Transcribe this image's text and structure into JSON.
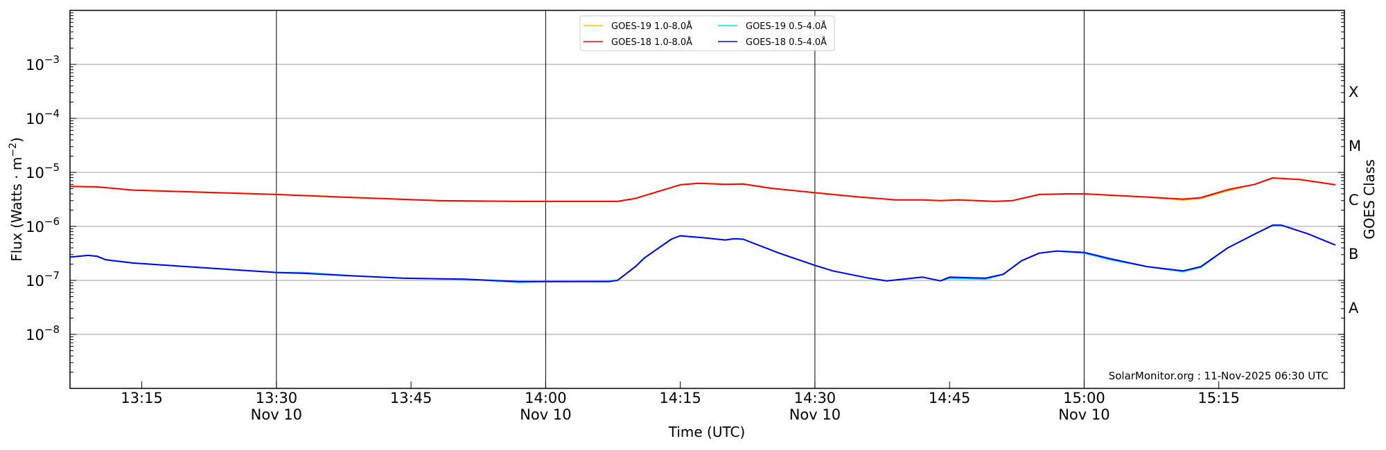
{
  "chart_data": {
    "type": "line",
    "title": "",
    "xlabel": "Time (UTC)",
    "ylabel": "Flux (Watts · m",
    "ylabel_sup": "−2",
    "ylabel_close": ")",
    "right_axis_label": "GOES Class",
    "yscale": "log",
    "ylim": [
      1e-09,
      0.01
    ],
    "xlim": [
      "13:07",
      "15:29"
    ],
    "date": "Nov 10",
    "grid": "horizontal at decades; vertical at half-hours",
    "legend_position": "top-center",
    "watermark": "SolarMonitor.org : 11-Nov-2025 06:30 UTC",
    "y_ticks": [
      {
        "value": 1e-08,
        "base": "10",
        "exp": "−8"
      },
      {
        "value": 1e-07,
        "base": "10",
        "exp": "−7"
      },
      {
        "value": 1e-06,
        "base": "10",
        "exp": "−6"
      },
      {
        "value": 1e-05,
        "base": "10",
        "exp": "−5"
      },
      {
        "value": 0.0001,
        "base": "10",
        "exp": "−4"
      },
      {
        "value": 0.001,
        "base": "10",
        "exp": "−3"
      }
    ],
    "x_ticks": [
      {
        "time": "13:15",
        "date": ""
      },
      {
        "time": "13:30",
        "date": "Nov 10"
      },
      {
        "time": "13:45",
        "date": ""
      },
      {
        "time": "14:00",
        "date": "Nov 10"
      },
      {
        "time": "14:15",
        "date": ""
      },
      {
        "time": "14:30",
        "date": "Nov 10"
      },
      {
        "time": "14:45",
        "date": ""
      },
      {
        "time": "15:00",
        "date": "Nov 10"
      },
      {
        "time": "15:15",
        "date": ""
      }
    ],
    "goes_classes": [
      {
        "label": "A",
        "value": 3.16e-08
      },
      {
        "label": "B",
        "value": 3.16e-07
      },
      {
        "label": "C",
        "value": 3.16e-06
      },
      {
        "label": "M",
        "value": 3.16e-05
      },
      {
        "label": "X",
        "value": 0.000316
      }
    ],
    "colors": {
      "goes19_long": "#ffc000",
      "goes19_short": "#00e5ee",
      "goes18_long": "#ff0000",
      "goes18_short": "#0000ff"
    },
    "series": [
      {
        "name": "GOES-19 1.0-8.0Å",
        "color": "#ffc000",
        "x": [
          "13:07",
          "13:10",
          "13:14",
          "13:30",
          "13:39",
          "13:48",
          "13:57",
          "14:08",
          "14:10",
          "14:15",
          "14:17",
          "14:20",
          "14:22",
          "14:25",
          "14:30",
          "14:35",
          "14:39",
          "14:42",
          "14:44",
          "14:46",
          "14:50",
          "14:52",
          "14:55",
          "14:58",
          "15:00",
          "15:07",
          "15:11",
          "15:13",
          "15:16",
          "15:19",
          "15:21",
          "15:24",
          "15:28"
        ],
        "y": [
          5.5e-06,
          5.4e-06,
          4.7e-06,
          3.9e-06,
          3.4e-06,
          3e-06,
          2.9e-06,
          2.9e-06,
          3.3e-06,
          5.9e-06,
          6.3e-06,
          6e-06,
          6.1e-06,
          5.1e-06,
          4.2e-06,
          3.5e-06,
          3.1e-06,
          3.1e-06,
          3e-06,
          3.1e-06,
          2.9e-06,
          3e-06,
          3.9e-06,
          4e-06,
          4e-06,
          3.5e-06,
          3.1e-06,
          3.3e-06,
          4.6e-06,
          6e-06,
          7.9e-06,
          7.4e-06,
          5.9e-06
        ]
      },
      {
        "name": "GOES-18 1.0-8.0Å",
        "color": "#ff0000",
        "x": [
          "13:07",
          "13:10",
          "13:14",
          "13:30",
          "13:39",
          "13:48",
          "13:57",
          "14:08",
          "14:10",
          "14:15",
          "14:17",
          "14:20",
          "14:22",
          "14:25",
          "14:30",
          "14:35",
          "14:39",
          "14:42",
          "14:44",
          "14:46",
          "14:50",
          "14:52",
          "14:55",
          "14:58",
          "15:00",
          "15:07",
          "15:11",
          "15:13",
          "15:16",
          "15:19",
          "15:21",
          "15:24",
          "15:28"
        ],
        "y": [
          5.5e-06,
          5.4e-06,
          4.7e-06,
          3.9e-06,
          3.4e-06,
          3e-06,
          2.9e-06,
          2.9e-06,
          3.3e-06,
          5.9e-06,
          6.3e-06,
          6e-06,
          6.1e-06,
          5.1e-06,
          4.2e-06,
          3.5e-06,
          3.1e-06,
          3.1e-06,
          3e-06,
          3.1e-06,
          2.9e-06,
          3e-06,
          3.9e-06,
          4e-06,
          4e-06,
          3.5e-06,
          3.2e-06,
          3.4e-06,
          4.8e-06,
          6e-06,
          7.9e-06,
          7.4e-06,
          5.9e-06
        ]
      },
      {
        "name": "GOES-19 0.5-4.0Å",
        "color": "#00e5ee",
        "x": [
          "13:07",
          "13:09",
          "13:10",
          "13:11",
          "13:14",
          "13:20",
          "13:26",
          "13:30",
          "13:33",
          "13:39",
          "13:44",
          "13:51",
          "13:57",
          "14:00",
          "14:07",
          "14:08",
          "14:10",
          "14:11",
          "14:14",
          "14:15",
          "14:17",
          "14:20",
          "14:21",
          "14:22",
          "14:26",
          "14:30",
          "14:32",
          "14:36",
          "14:38",
          "14:42",
          "14:44",
          "14:45",
          "14:49",
          "14:51",
          "14:53",
          "14:55",
          "14:57",
          "15:00",
          "15:03",
          "15:07",
          "15:11",
          "15:13",
          "15:16",
          "15:19",
          "15:21",
          "15:22",
          "15:25",
          "15:28"
        ],
        "y": [
          2.7e-07,
          2.9e-07,
          2.8e-07,
          2.4e-07,
          2.1e-07,
          1.8e-07,
          1.55e-07,
          1.4e-07,
          1.4e-07,
          1.2e-07,
          1.1e-07,
          1.05e-07,
          9.2e-08,
          9.5e-08,
          9.8e-08,
          1e-07,
          1.8e-07,
          2.6e-07,
          5.8e-07,
          6.7e-07,
          6.3e-07,
          5.6e-07,
          5.9e-07,
          5.8e-07,
          3.2e-07,
          1.9e-07,
          1.5e-07,
          1.1e-07,
          9.8e-08,
          1.15e-07,
          9.8e-08,
          1.1e-07,
          1.05e-07,
          1.3e-07,
          2.3e-07,
          3.2e-07,
          3.5e-07,
          3.2e-07,
          2.4e-07,
          1.8e-07,
          1.45e-07,
          1.75e-07,
          4e-07,
          7.2e-07,
          1.05e-06,
          1.05e-06,
          7.2e-07,
          4.5e-07
        ]
      },
      {
        "name": "GOES-18 0.5-4.0Å",
        "color": "#0000ff",
        "x": [
          "13:07",
          "13:09",
          "13:10",
          "13:11",
          "13:14",
          "13:20",
          "13:26",
          "13:30",
          "13:33",
          "13:39",
          "13:44",
          "13:51",
          "13:57",
          "14:00",
          "14:07",
          "14:08",
          "14:10",
          "14:11",
          "14:14",
          "14:15",
          "14:17",
          "14:20",
          "14:21",
          "14:22",
          "14:26",
          "14:30",
          "14:32",
          "14:36",
          "14:38",
          "14:42",
          "14:44",
          "14:45",
          "14:49",
          "14:51",
          "14:53",
          "14:55",
          "14:57",
          "15:00",
          "15:03",
          "15:07",
          "15:11",
          "15:13",
          "15:16",
          "15:19",
          "15:21",
          "15:22",
          "15:25",
          "15:28"
        ],
        "y": [
          2.7e-07,
          2.9e-07,
          2.8e-07,
          2.4e-07,
          2.1e-07,
          1.8e-07,
          1.55e-07,
          1.4e-07,
          1.35e-07,
          1.2e-07,
          1.1e-07,
          1.05e-07,
          9.5e-08,
          9.5e-08,
          9.5e-08,
          1e-07,
          1.8e-07,
          2.6e-07,
          5.8e-07,
          6.7e-07,
          6.3e-07,
          5.6e-07,
          5.9e-07,
          5.8e-07,
          3.2e-07,
          1.9e-07,
          1.5e-07,
          1.1e-07,
          9.8e-08,
          1.15e-07,
          9.8e-08,
          1.15e-07,
          1.1e-07,
          1.3e-07,
          2.3e-07,
          3.2e-07,
          3.5e-07,
          3.3e-07,
          2.5e-07,
          1.8e-07,
          1.5e-07,
          1.8e-07,
          4e-07,
          7.2e-07,
          1.05e-06,
          1.05e-06,
          7.2e-07,
          4.5e-07
        ]
      }
    ]
  }
}
